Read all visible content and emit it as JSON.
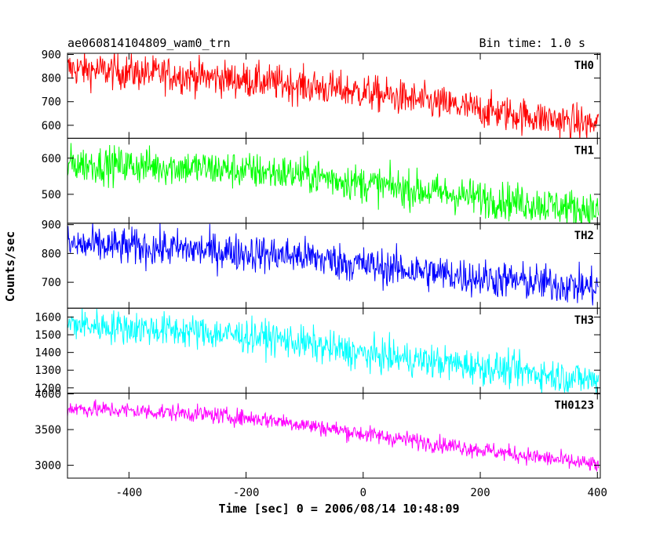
{
  "chart_data": {
    "type": "line",
    "title_left": "ae060814104809_wam0_trn",
    "title_right": "Bin time: 1.0 s",
    "xlabel": "Time [sec] 0 = 2006/08/14 10:48:09",
    "ylabel": "Counts/sec",
    "xlim": [
      -505,
      405
    ],
    "x_ticks": [
      -400,
      -200,
      0,
      200,
      400
    ],
    "x_range": [
      -505,
      402
    ],
    "bin": 1.0,
    "grid": false,
    "panels": [
      {
        "name": "TH0",
        "color": "#ff0000",
        "ylim": [
          545,
          905
        ],
        "yticks": [
          600,
          700,
          800,
          900
        ],
        "trend": [
          [
            -505,
            840
          ],
          [
            -300,
            810
          ],
          [
            -150,
            780
          ],
          [
            0,
            740
          ],
          [
            200,
            665
          ],
          [
            402,
            600
          ]
        ],
        "noise": 38
      },
      {
        "name": "TH1",
        "color": "#00ff00",
        "ylim": [
          420,
          655
        ],
        "yticks": [
          500,
          600
        ],
        "trend": [
          [
            -505,
            585
          ],
          [
            -300,
            575
          ],
          [
            -100,
            555
          ],
          [
            0,
            530
          ],
          [
            200,
            490
          ],
          [
            402,
            455
          ]
        ],
        "noise": 26
      },
      {
        "name": "TH2",
        "color": "#0000ff",
        "ylim": [
          610,
          905
        ],
        "yticks": [
          700,
          800,
          900
        ],
        "trend": [
          [
            -505,
            830
          ],
          [
            -300,
            815
          ],
          [
            -100,
            790
          ],
          [
            0,
            760
          ],
          [
            200,
            715
          ],
          [
            402,
            680
          ]
        ],
        "noise": 33
      },
      {
        "name": "TH3",
        "color": "#00ffff",
        "ylim": [
          1170,
          1650
        ],
        "yticks": [
          1200,
          1300,
          1400,
          1500,
          1600
        ],
        "trend": [
          [
            -505,
            1560
          ],
          [
            -300,
            1520
          ],
          [
            -150,
            1480
          ],
          [
            0,
            1390
          ],
          [
            200,
            1320
          ],
          [
            402,
            1240
          ]
        ],
        "noise": 48
      },
      {
        "name": "TH0123",
        "color": "#ff00ff",
        "ylim": [
          2820,
          4010
        ],
        "yticks": [
          3000,
          3500,
          4000
        ],
        "trend": [
          [
            -505,
            3800
          ],
          [
            -300,
            3730
          ],
          [
            -150,
            3630
          ],
          [
            0,
            3440
          ],
          [
            200,
            3220
          ],
          [
            402,
            3000
          ]
        ],
        "noise": 60
      }
    ]
  }
}
